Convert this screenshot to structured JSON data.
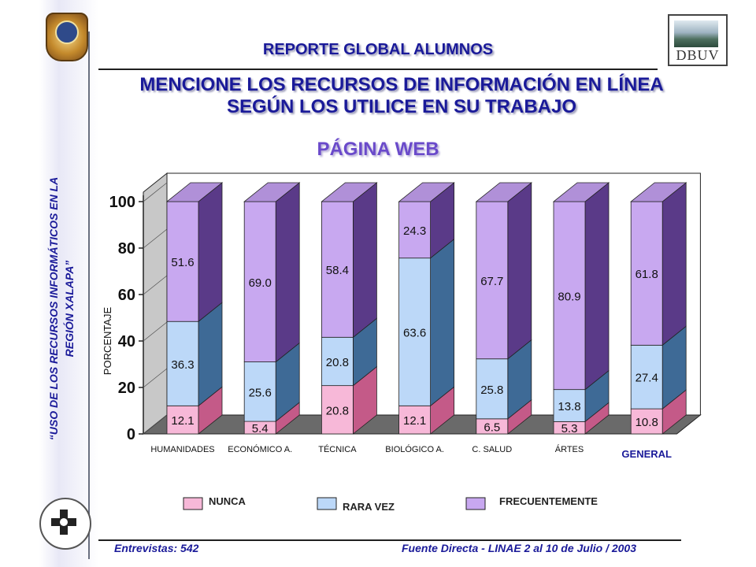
{
  "header": {
    "report_title": "REPORTE GLOBAL ALUMNOS",
    "question_line1": "MENCIONE LOS RECURSOS DE INFORMACIÓN EN LÍNEA",
    "question_line2": "SEGÚN LOS UTILICE EN SU TRABAJO",
    "subtitle": "PÁGINA WEB"
  },
  "sidebar": {
    "vertical_title": "“USO DE LOS RECURSOS INFORMÁTICOS EN LA\nREGIÓN XALAPA”"
  },
  "footer": {
    "interviews": "Entrevistas: 542",
    "source": "Fuente Directa -  LINAE 2 al 10  de Julio / 2003"
  },
  "logos": {
    "right_logo_text": "DBUV"
  },
  "colors": {
    "nunca": "#f7b8d8",
    "rara_vez": "#bcd8f8",
    "frecuentemente": "#c8a8f0",
    "title": "#1a1a99",
    "subtitle": "#6a4aca"
  },
  "chart_data": {
    "type": "bar",
    "stacked": true,
    "three_d": true,
    "ylabel": "PORCENTAJE",
    "ylim": [
      0,
      100
    ],
    "yticks": [
      0,
      20,
      40,
      60,
      80,
      100
    ],
    "categories": [
      "HUMANIDADES",
      "ECONÓMICO A.",
      "TÉCNICA",
      "BIOLÓGICO A.",
      "C. SALUD",
      "ÁRTES",
      "GENERAL"
    ],
    "series": [
      {
        "name": "NUNCA",
        "values": [
          12.1,
          5.4,
          20.8,
          12.1,
          6.5,
          5.3,
          10.8
        ]
      },
      {
        "name": "RARA VEZ",
        "values": [
          36.3,
          25.6,
          20.8,
          63.6,
          25.8,
          13.8,
          27.4
        ]
      },
      {
        "name": "FRECUENTEMENTE",
        "values": [
          51.6,
          69.0,
          58.4,
          24.3,
          67.7,
          80.9,
          61.8
        ]
      }
    ],
    "value_labels": [
      [
        "12.1",
        "5.4",
        "20.8",
        "12.1",
        "6.5",
        "5.3",
        "10.8"
      ],
      [
        "36.3",
        "25.6",
        "20.8",
        "63.6",
        "25.8",
        "13.8",
        "27.4"
      ],
      [
        "51.6",
        "69.0",
        "58.4",
        "24.3",
        "67.7",
        "80.9",
        "61.8"
      ]
    ],
    "legend_position": "bottom"
  }
}
